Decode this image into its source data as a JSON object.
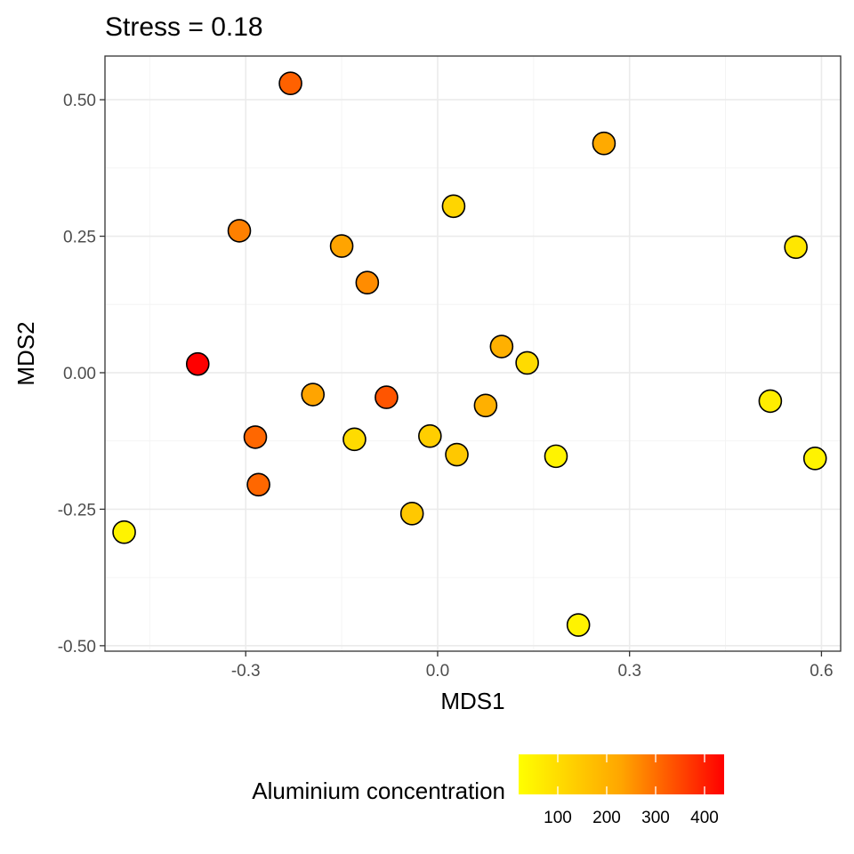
{
  "chart_data": {
    "type": "scatter",
    "title": "Stress =  0.18",
    "xlabel": "MDS1",
    "ylabel": "MDS2",
    "xlim": [
      -0.52,
      0.63
    ],
    "ylim": [
      -0.51,
      0.58
    ],
    "x_ticks": [
      -0.3,
      0.0,
      0.3,
      0.6
    ],
    "x_tick_labels": [
      "-0.3",
      "0.0",
      "0.3",
      "0.6"
    ],
    "y_ticks": [
      -0.5,
      -0.25,
      0.0,
      0.25,
      0.5
    ],
    "y_tick_labels": [
      "-0.50",
      "-0.25",
      "0.00",
      "0.25",
      "0.50"
    ],
    "grid": true,
    "legend": {
      "title": "Aluminium concentration",
      "position": "bottom",
      "type": "colorbar",
      "range": [
        20,
        440
      ],
      "ticks": [
        100,
        200,
        300,
        400
      ],
      "tick_labels": [
        "100",
        "200",
        "300",
        "400"
      ],
      "low_color": "#ffff00",
      "high_color": "#ff0000"
    },
    "points": [
      {
        "x": -0.23,
        "y": 0.53,
        "value": 280
      },
      {
        "x": 0.26,
        "y": 0.42,
        "value": 160
      },
      {
        "x": 0.025,
        "y": 0.305,
        "value": 90
      },
      {
        "x": -0.31,
        "y": 0.26,
        "value": 230
      },
      {
        "x": -0.15,
        "y": 0.232,
        "value": 170
      },
      {
        "x": 0.56,
        "y": 0.23,
        "value": 60
      },
      {
        "x": -0.11,
        "y": 0.165,
        "value": 210
      },
      {
        "x": 0.1,
        "y": 0.048,
        "value": 150
      },
      {
        "x": 0.14,
        "y": 0.018,
        "value": 80
      },
      {
        "x": -0.375,
        "y": 0.016,
        "value": 440
      },
      {
        "x": -0.195,
        "y": -0.04,
        "value": 170
      },
      {
        "x": -0.08,
        "y": -0.045,
        "value": 300
      },
      {
        "x": 0.075,
        "y": -0.06,
        "value": 150
      },
      {
        "x": 0.52,
        "y": -0.052,
        "value": 50
      },
      {
        "x": -0.285,
        "y": -0.118,
        "value": 270
      },
      {
        "x": -0.13,
        "y": -0.122,
        "value": 80
      },
      {
        "x": -0.012,
        "y": -0.116,
        "value": 100
      },
      {
        "x": 0.03,
        "y": -0.15,
        "value": 110
      },
      {
        "x": 0.185,
        "y": -0.153,
        "value": 40
      },
      {
        "x": 0.59,
        "y": -0.157,
        "value": 40
      },
      {
        "x": -0.28,
        "y": -0.205,
        "value": 270
      },
      {
        "x": -0.04,
        "y": -0.258,
        "value": 110
      },
      {
        "x": -0.49,
        "y": -0.292,
        "value": 40
      },
      {
        "x": 0.22,
        "y": -0.462,
        "value": 40
      }
    ]
  }
}
